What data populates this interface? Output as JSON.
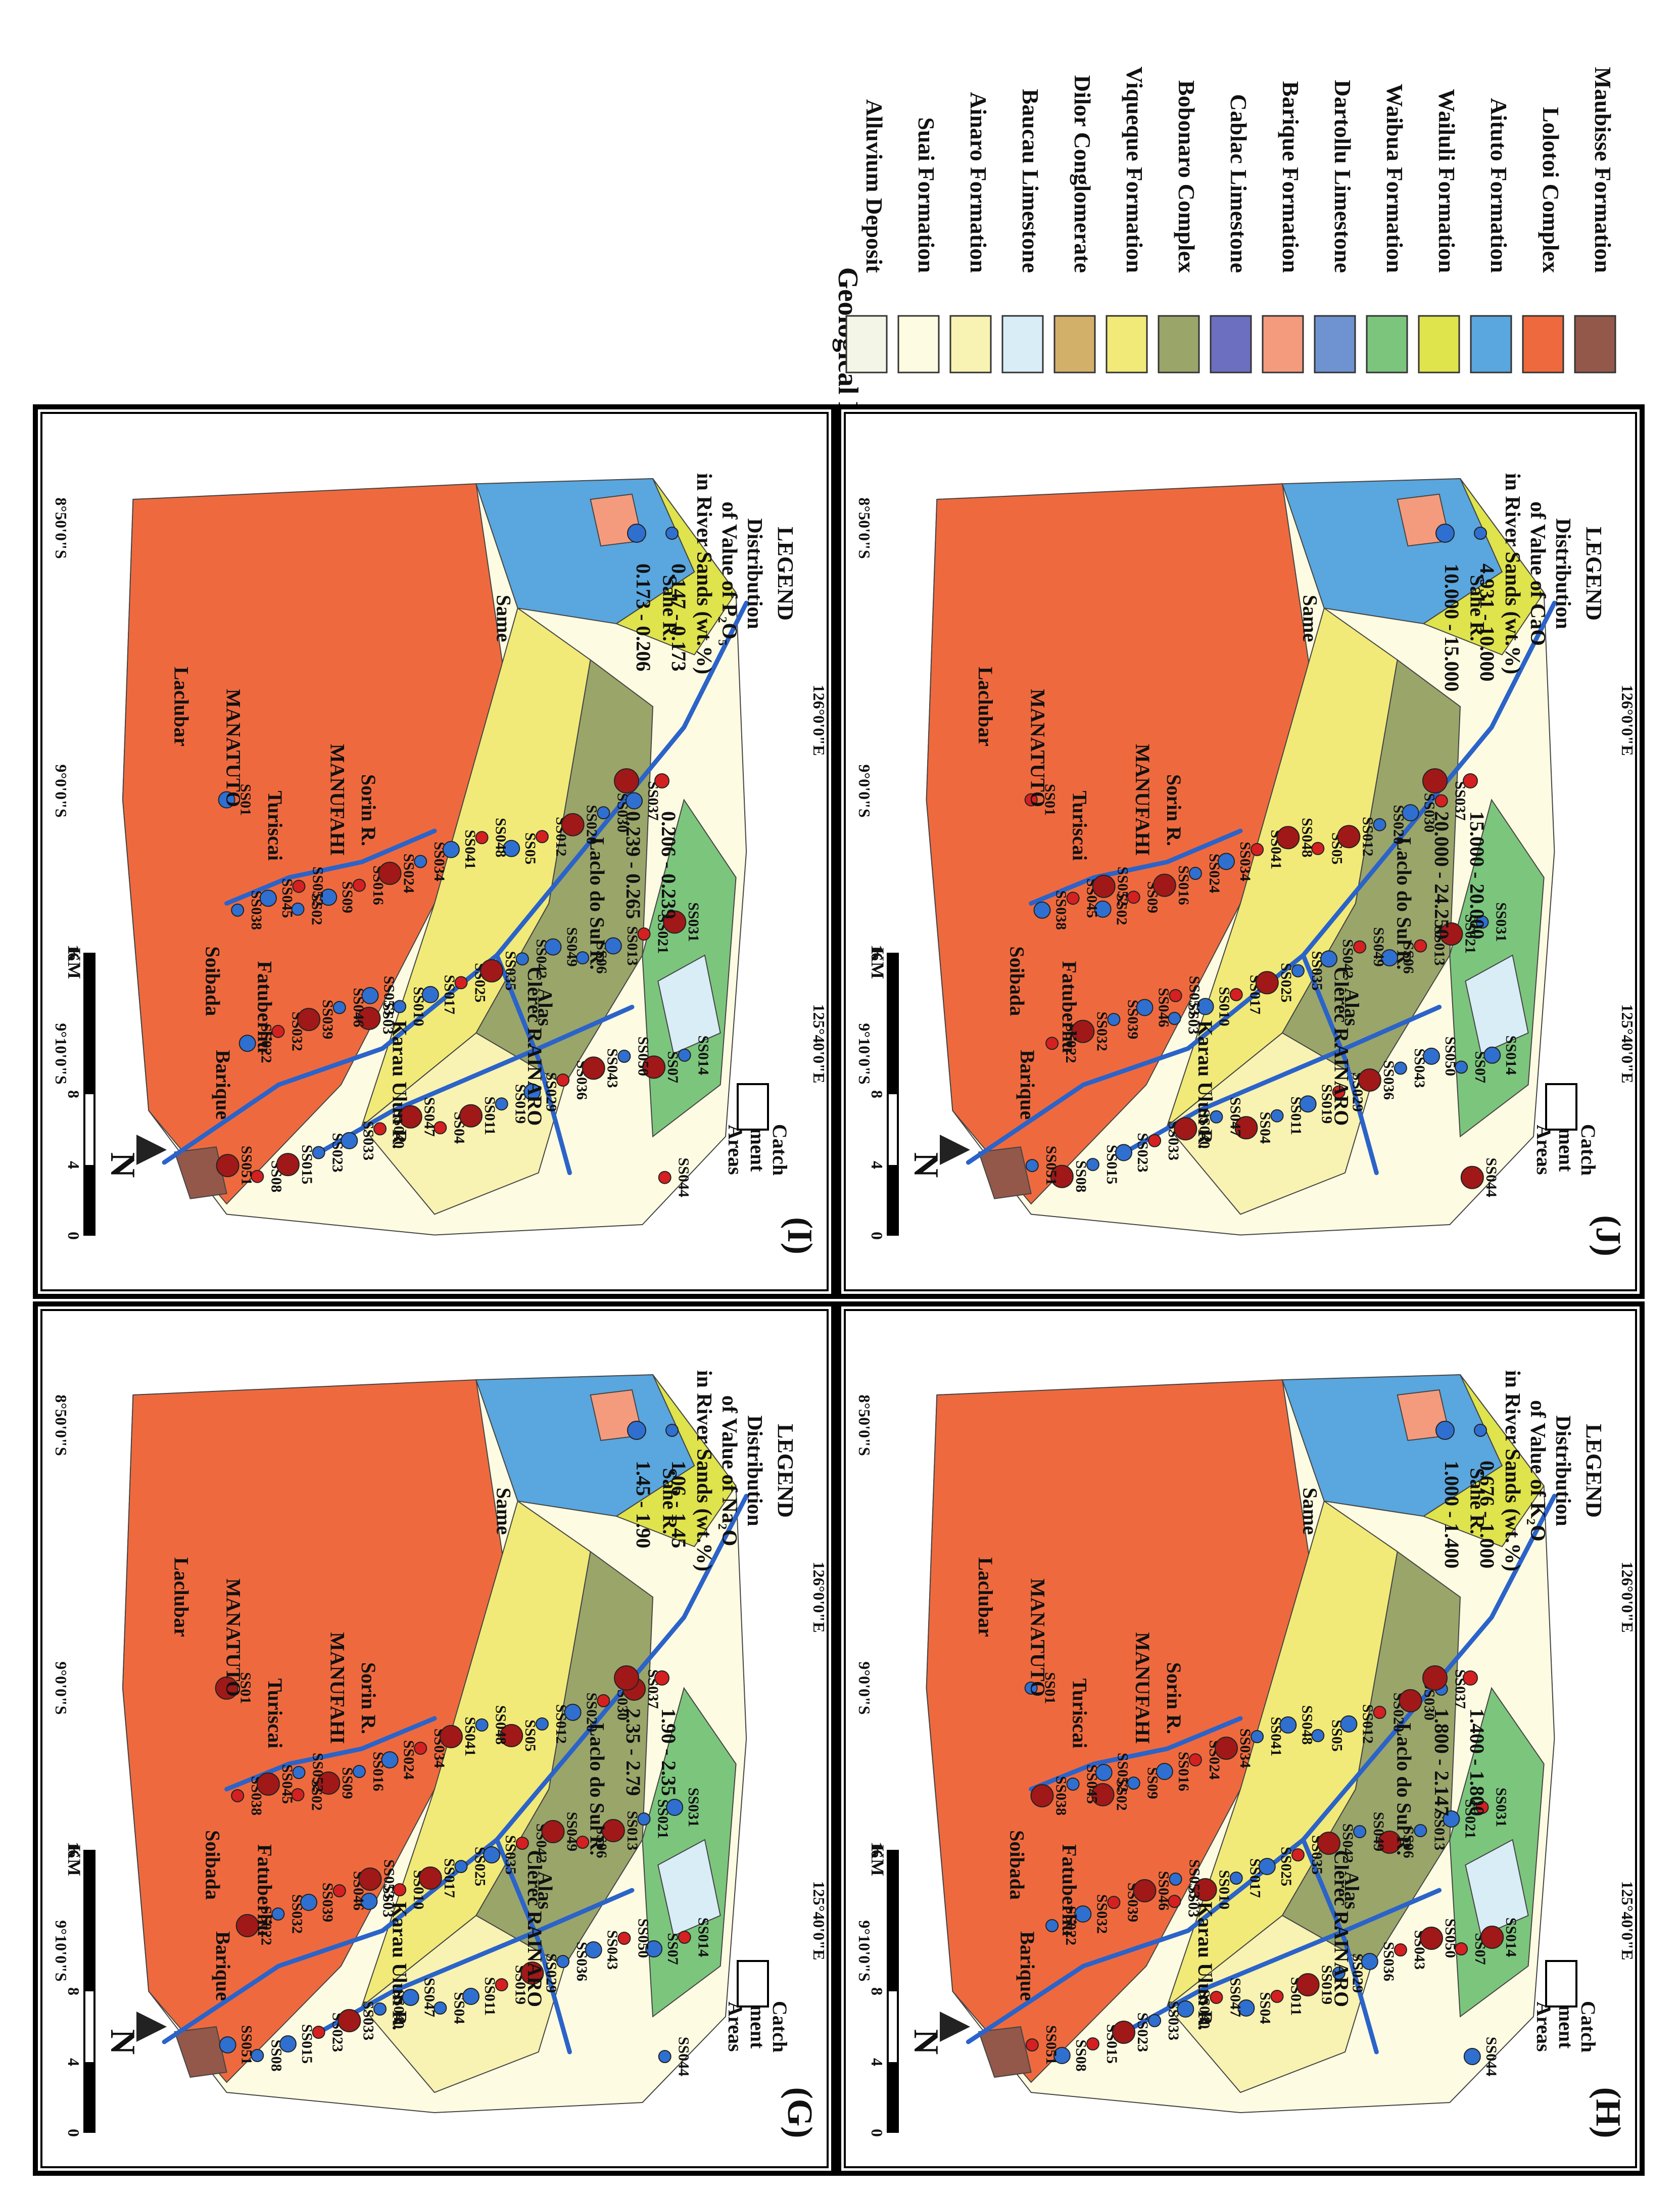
{
  "legend_formations": {
    "title": "Geological Formations",
    "items": [
      {
        "name": "Alluvium Deposit",
        "color": "#f3f6e6"
      },
      {
        "name": "Suai Formation",
        "color": "#fdfbe2"
      },
      {
        "name": "Ainaro Formation",
        "color": "#f8f2b3"
      },
      {
        "name": "Baucau Limestone",
        "color": "#d8edf5"
      },
      {
        "name": "Dilor Conglomerate",
        "color": "#d3b06a"
      },
      {
        "name": "Viqueque Formation",
        "color": "#f1ea78"
      },
      {
        "name": "Bobonaro Complex",
        "color": "#9aa56a"
      },
      {
        "name": "Cablac Limestone",
        "color": "#6c6fc0"
      },
      {
        "name": "Barique Formation",
        "color": "#f49b7e"
      },
      {
        "name": "Dartollu Limestone",
        "color": "#6e93d0"
      },
      {
        "name": "Waibua Formation",
        "color": "#7cc57d"
      },
      {
        "name": "Wailuli Formation",
        "color": "#dfe34c"
      },
      {
        "name": "Aituto Formation",
        "color": "#5aa6de"
      },
      {
        "name": "Lolotoi Complex",
        "color": "#ee6a3e"
      },
      {
        "name": "Maubisse Formation",
        "color": "#93584a"
      }
    ]
  },
  "common": {
    "scale_unit": "KM",
    "scale_ticks": [
      "0",
      "4",
      "8",
      "16"
    ],
    "north": "N",
    "lat_labels": [
      "8°50'0\"S",
      "9°0'0\"S",
      "9°10'0\"S"
    ],
    "lon_labels": [
      "125°40'0\"E",
      "126°0'0\"E"
    ],
    "catchment_label": [
      "Catch",
      "ment",
      "Areas"
    ],
    "place_names": [
      "MANATUTO",
      "MANUFAHI",
      "Turiscai",
      "Laclubar",
      "Soibada",
      "Fatuberliu",
      "Barique",
      "Same",
      "Alas",
      "AINARO"
    ],
    "rivers": [
      "Sahe R.",
      "Clerec R.",
      "Laclo do Sul R.",
      "Karau Ulun R.",
      "Sorin R."
    ],
    "sites": [
      "SS01",
      "SS02",
      "SS03",
      "SS04",
      "SS05",
      "SS06",
      "SS07",
      "SS08",
      "SS09",
      "SS010",
      "SS011",
      "SS012",
      "SS013",
      "SS014",
      "SS015",
      "SS016",
      "SS017",
      "SS019",
      "SS020",
      "SS021",
      "SS022",
      "SS023",
      "SS024",
      "SS025",
      "SS029",
      "SS030",
      "SS031",
      "SS032",
      "SS033",
      "SS034",
      "SS035",
      "SS036",
      "SS037",
      "SS038",
      "SS039",
      "SS040",
      "SS041",
      "SS042",
      "SS043",
      "SS044",
      "SS045",
      "SS046",
      "SS047",
      "SS048",
      "SS049",
      "SS050",
      "SS051",
      "SS052",
      "SS053"
    ],
    "legend_title": "LEGEND"
  },
  "panels": [
    {
      "id": "H",
      "letter": "(H)",
      "dist_line1": "Distribution",
      "dist_line2": "of Value of K₂O",
      "dist_line3": "in River Sands (wt.%)",
      "classes": [
        "0.676 - 1.000",
        "1.000 - 1.400",
        "1.400 - 1.800",
        "1.800 - 2.147"
      ]
    },
    {
      "id": "G",
      "letter": "(G)",
      "dist_line1": "Distribution",
      "dist_line2": "of Value of Na₂O",
      "dist_line3": "in River Sands (wt.%)",
      "classes": [
        "1.06 - 1.45",
        "1.45 - 1.90",
        "1.90 - 2.35",
        "2.35 - 2.79"
      ]
    },
    {
      "id": "J",
      "letter": "(J)",
      "dist_line1": "Distribution",
      "dist_line2": "of Value of CaO",
      "dist_line3": "in River Sands (wt.%)",
      "classes": [
        "4.931 - 10.000",
        "10.000 - 15.000",
        "15.000 - 20.000",
        "20.000 - 24.250"
      ]
    },
    {
      "id": "I",
      "letter": "(I)",
      "dist_line1": "Distribution",
      "dist_line2": "of Value of P₂O₅",
      "dist_line3": "in River Sands (wt.%)",
      "classes": [
        "0.147 - 0.173",
        "0.173 - 0.206",
        "0.206 - 0.239",
        "0.239 - 0.265"
      ]
    }
  ],
  "symbol_colors": {
    "low": "#2f6fd0",
    "high": "#d42020",
    "highest": "#a01818"
  }
}
